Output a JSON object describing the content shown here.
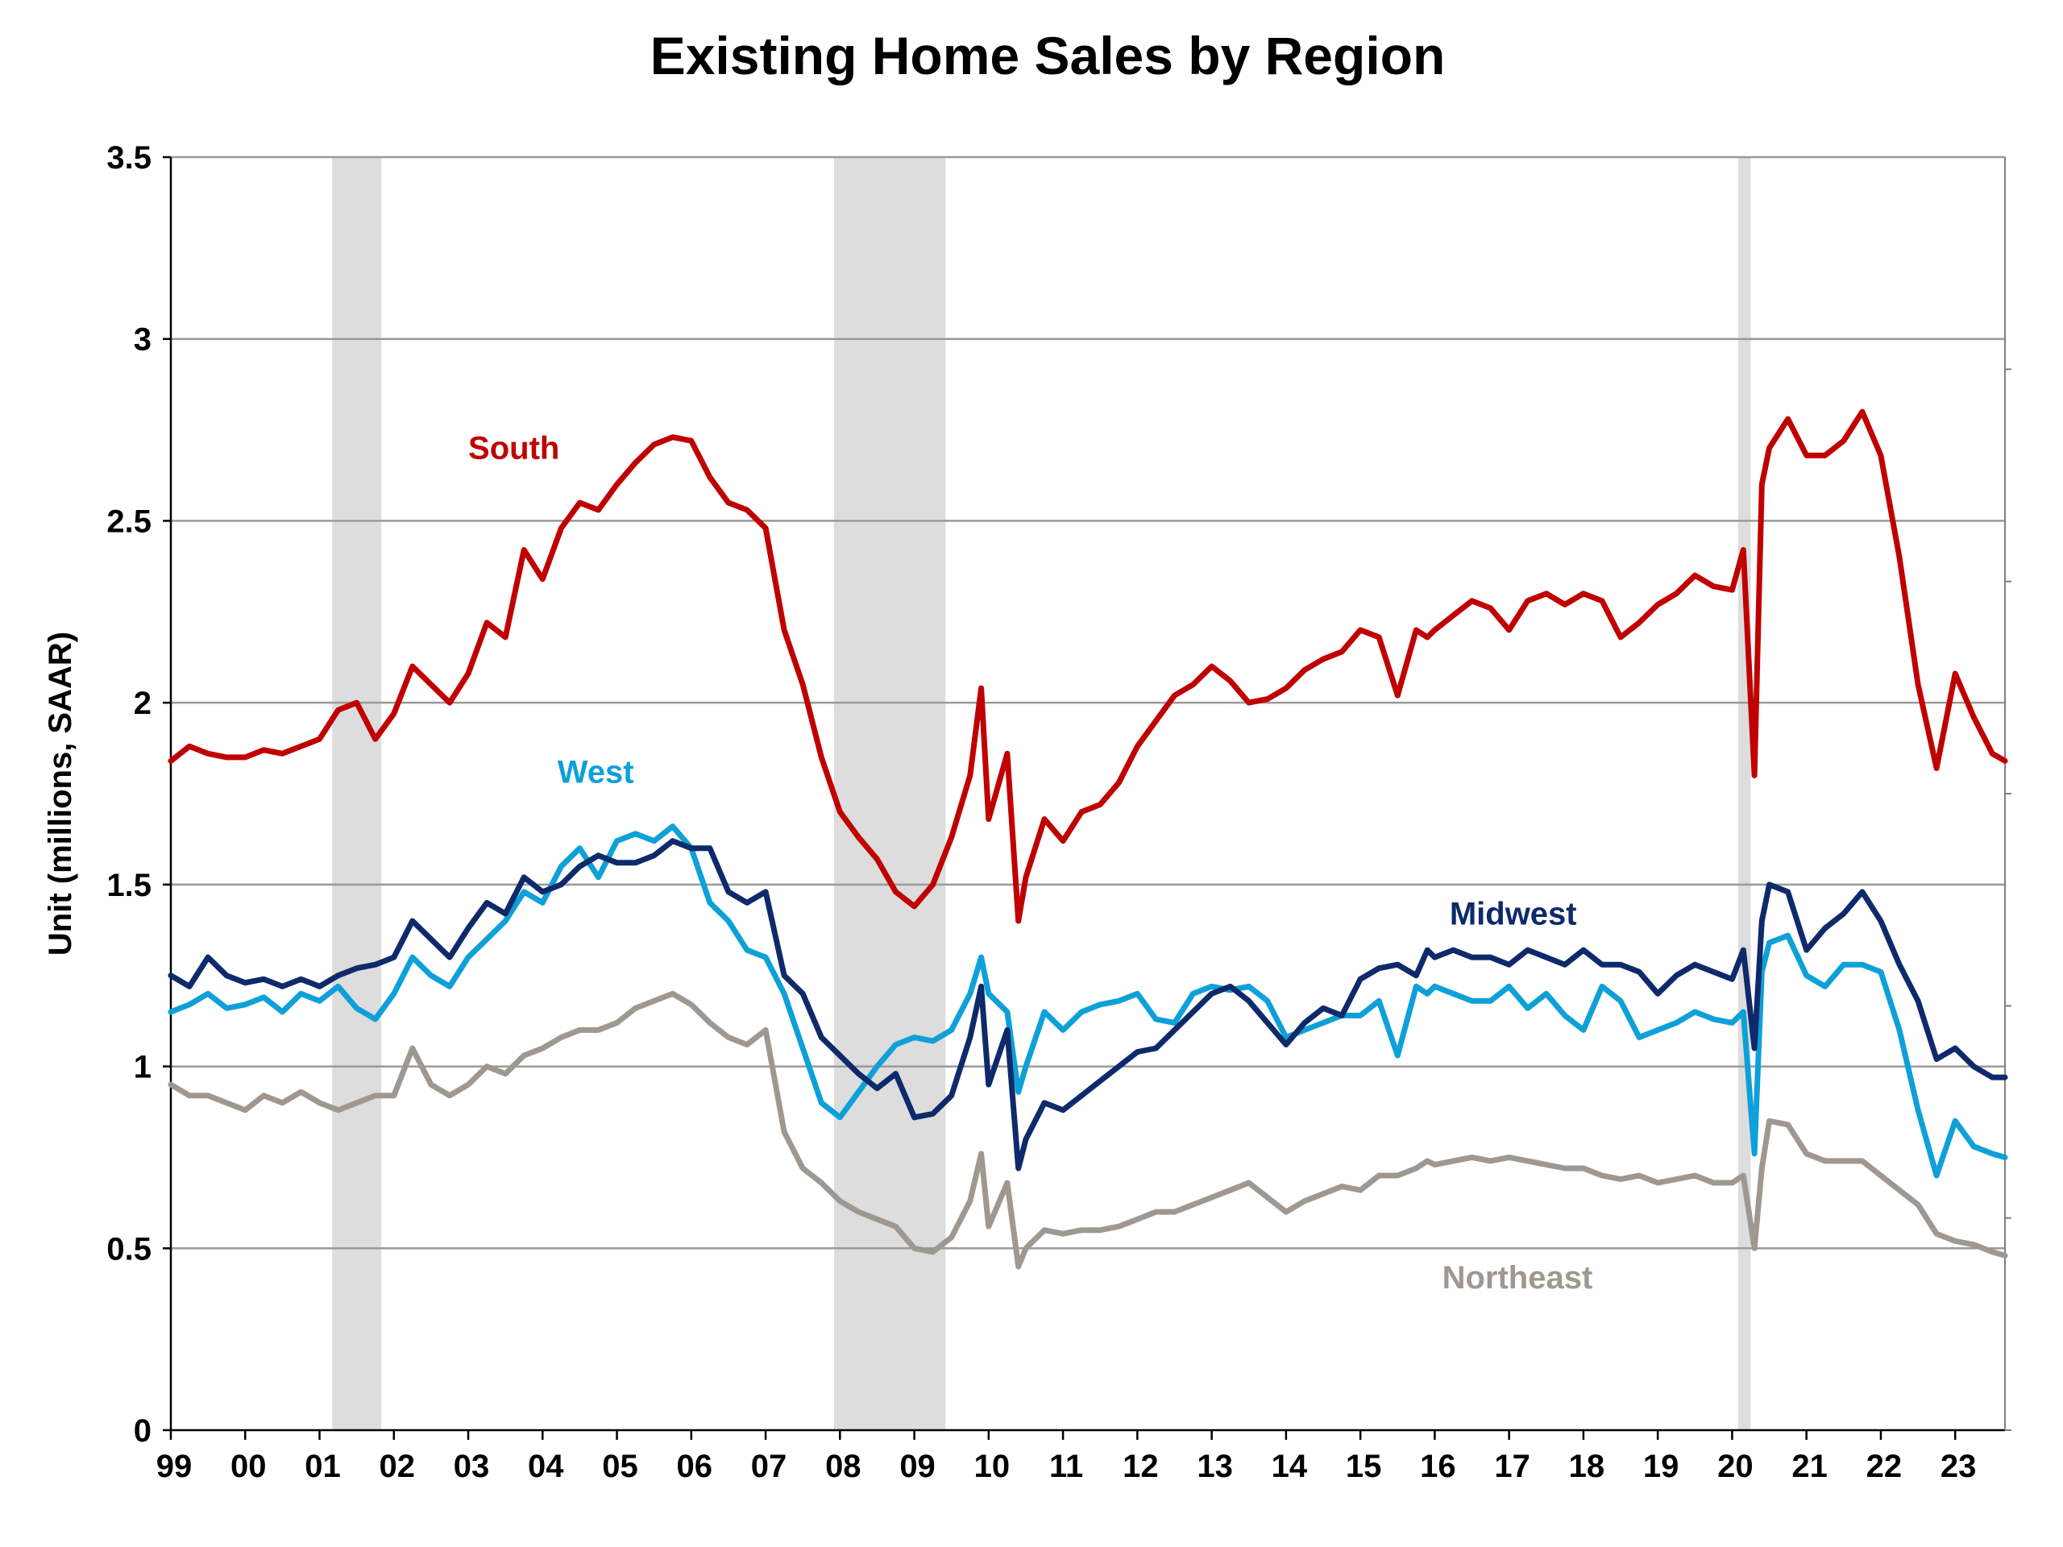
{
  "chart_data": {
    "type": "line",
    "title": "Existing Home Sales by Region",
    "ylabel": "Unit (millions, SAAR)",
    "xlabel": "",
    "ylim": [
      0,
      3.5
    ],
    "yticks": [
      "0",
      "0.5",
      "1",
      "1.5",
      "2",
      "2.5",
      "3",
      "3.5"
    ],
    "xlim": [
      1999.0,
      2023.67
    ],
    "xticks": [
      "99",
      "00",
      "01",
      "02",
      "03",
      "04",
      "05",
      "06",
      "07",
      "08",
      "09",
      "10",
      "11",
      "12",
      "13",
      "14",
      "15",
      "16",
      "17",
      "18",
      "19",
      "20",
      "21",
      "22",
      "23"
    ],
    "grid": true,
    "legend": "inline",
    "recession_shading": [
      [
        2001.17,
        2001.83
      ],
      [
        2007.92,
        2009.42
      ],
      [
        2020.08,
        2020.25
      ]
    ],
    "series": [
      {
        "name": "South",
        "color": "#c00000",
        "x": [
          1999.0,
          1999.25,
          1999.5,
          1999.75,
          2000.0,
          2000.25,
          2000.5,
          2000.75,
          2001.0,
          2001.25,
          2001.5,
          2001.75,
          2002.0,
          2002.25,
          2002.5,
          2002.75,
          2003.0,
          2003.25,
          2003.5,
          2003.75,
          2004.0,
          2004.25,
          2004.5,
          2004.75,
          2005.0,
          2005.25,
          2005.5,
          2005.75,
          2006.0,
          2006.25,
          2006.5,
          2006.75,
          2007.0,
          2007.25,
          2007.5,
          2007.75,
          2008.0,
          2008.25,
          2008.5,
          2008.75,
          2009.0,
          2009.25,
          2009.5,
          2009.75,
          2009.9,
          2010.0,
          2010.25,
          2010.4,
          2010.5,
          2010.75,
          2011.0,
          2011.25,
          2011.5,
          2011.75,
          2012.0,
          2012.25,
          2012.5,
          2012.75,
          2013.0,
          2013.25,
          2013.5,
          2013.75,
          2014.0,
          2014.25,
          2014.5,
          2014.75,
          2015.0,
          2015.25,
          2015.5,
          2015.75,
          2015.9,
          2016.0,
          2016.25,
          2016.5,
          2016.75,
          2017.0,
          2017.25,
          2017.5,
          2017.75,
          2018.0,
          2018.25,
          2018.5,
          2018.75,
          2019.0,
          2019.25,
          2019.5,
          2019.75,
          2020.0,
          2020.15,
          2020.3,
          2020.4,
          2020.5,
          2020.75,
          2021.0,
          2021.25,
          2021.5,
          2021.75,
          2022.0,
          2022.25,
          2022.5,
          2022.75,
          2023.0,
          2023.25,
          2023.5,
          2023.67
        ],
        "y": [
          1.84,
          1.88,
          1.86,
          1.85,
          1.85,
          1.87,
          1.86,
          1.88,
          1.9,
          1.98,
          2.0,
          1.9,
          1.97,
          2.1,
          2.05,
          2.0,
          2.08,
          2.22,
          2.18,
          2.42,
          2.34,
          2.48,
          2.55,
          2.53,
          2.6,
          2.66,
          2.71,
          2.73,
          2.72,
          2.62,
          2.55,
          2.53,
          2.48,
          2.2,
          2.05,
          1.85,
          1.7,
          1.63,
          1.57,
          1.48,
          1.44,
          1.5,
          1.63,
          1.8,
          2.04,
          1.68,
          1.86,
          1.4,
          1.52,
          1.68,
          1.62,
          1.7,
          1.72,
          1.78,
          1.88,
          1.95,
          2.02,
          2.05,
          2.1,
          2.06,
          2.0,
          2.01,
          2.04,
          2.09,
          2.12,
          2.14,
          2.2,
          2.18,
          2.02,
          2.2,
          2.18,
          2.2,
          2.24,
          2.28,
          2.26,
          2.2,
          2.28,
          2.3,
          2.27,
          2.3,
          2.28,
          2.18,
          2.22,
          2.27,
          2.3,
          2.35,
          2.32,
          2.31,
          2.42,
          1.8,
          2.6,
          2.7,
          2.78,
          2.68,
          2.68,
          2.72,
          2.8,
          2.68,
          2.4,
          2.05,
          1.82,
          2.08,
          1.96,
          1.86,
          1.84
        ]
      },
      {
        "name": "West",
        "color": "#0ea0d8",
        "x": [
          1999.0,
          1999.25,
          1999.5,
          1999.75,
          2000.0,
          2000.25,
          2000.5,
          2000.75,
          2001.0,
          2001.25,
          2001.5,
          2001.75,
          2002.0,
          2002.25,
          2002.5,
          2002.75,
          2003.0,
          2003.25,
          2003.5,
          2003.75,
          2004.0,
          2004.25,
          2004.5,
          2004.75,
          2005.0,
          2005.25,
          2005.5,
          2005.75,
          2006.0,
          2006.25,
          2006.5,
          2006.75,
          2007.0,
          2007.25,
          2007.5,
          2007.75,
          2008.0,
          2008.25,
          2008.5,
          2008.75,
          2009.0,
          2009.25,
          2009.5,
          2009.75,
          2009.9,
          2010.0,
          2010.25,
          2010.4,
          2010.5,
          2010.75,
          2011.0,
          2011.25,
          2011.5,
          2011.75,
          2012.0,
          2012.25,
          2012.5,
          2012.75,
          2013.0,
          2013.25,
          2013.5,
          2013.75,
          2014.0,
          2014.25,
          2014.5,
          2014.75,
          2015.0,
          2015.25,
          2015.5,
          2015.75,
          2015.9,
          2016.0,
          2016.25,
          2016.5,
          2016.75,
          2017.0,
          2017.25,
          2017.5,
          2017.75,
          2018.0,
          2018.25,
          2018.5,
          2018.75,
          2019.0,
          2019.25,
          2019.5,
          2019.75,
          2020.0,
          2020.15,
          2020.3,
          2020.4,
          2020.5,
          2020.75,
          2021.0,
          2021.25,
          2021.5,
          2021.75,
          2022.0,
          2022.25,
          2022.5,
          2022.75,
          2023.0,
          2023.25,
          2023.5,
          2023.67
        ],
        "y": [
          1.15,
          1.17,
          1.2,
          1.16,
          1.17,
          1.19,
          1.15,
          1.2,
          1.18,
          1.22,
          1.16,
          1.13,
          1.2,
          1.3,
          1.25,
          1.22,
          1.3,
          1.35,
          1.4,
          1.48,
          1.45,
          1.55,
          1.6,
          1.52,
          1.62,
          1.64,
          1.62,
          1.66,
          1.6,
          1.45,
          1.4,
          1.32,
          1.3,
          1.2,
          1.05,
          0.9,
          0.86,
          0.93,
          1.0,
          1.06,
          1.08,
          1.07,
          1.1,
          1.2,
          1.3,
          1.2,
          1.15,
          0.93,
          1.0,
          1.15,
          1.1,
          1.15,
          1.17,
          1.18,
          1.2,
          1.13,
          1.12,
          1.2,
          1.22,
          1.21,
          1.22,
          1.18,
          1.08,
          1.1,
          1.12,
          1.14,
          1.14,
          1.18,
          1.03,
          1.22,
          1.2,
          1.22,
          1.2,
          1.18,
          1.18,
          1.22,
          1.16,
          1.2,
          1.14,
          1.1,
          1.22,
          1.18,
          1.08,
          1.1,
          1.12,
          1.15,
          1.13,
          1.12,
          1.15,
          0.76,
          1.26,
          1.34,
          1.36,
          1.25,
          1.22,
          1.28,
          1.28,
          1.26,
          1.1,
          0.88,
          0.7,
          0.85,
          0.78,
          0.76,
          0.75
        ]
      },
      {
        "name": "Midwest",
        "color": "#0e2a6b",
        "x": [
          1999.0,
          1999.25,
          1999.5,
          1999.75,
          2000.0,
          2000.25,
          2000.5,
          2000.75,
          2001.0,
          2001.25,
          2001.5,
          2001.75,
          2002.0,
          2002.25,
          2002.5,
          2002.75,
          2003.0,
          2003.25,
          2003.5,
          2003.75,
          2004.0,
          2004.25,
          2004.5,
          2004.75,
          2005.0,
          2005.25,
          2005.5,
          2005.75,
          2006.0,
          2006.25,
          2006.5,
          2006.75,
          2007.0,
          2007.25,
          2007.5,
          2007.75,
          2008.0,
          2008.25,
          2008.5,
          2008.75,
          2009.0,
          2009.25,
          2009.5,
          2009.75,
          2009.9,
          2010.0,
          2010.25,
          2010.4,
          2010.5,
          2010.75,
          2011.0,
          2011.25,
          2011.5,
          2011.75,
          2012.0,
          2012.25,
          2012.5,
          2012.75,
          2013.0,
          2013.25,
          2013.5,
          2013.75,
          2014.0,
          2014.25,
          2014.5,
          2014.75,
          2015.0,
          2015.25,
          2015.5,
          2015.75,
          2015.9,
          2016.0,
          2016.25,
          2016.5,
          2016.75,
          2017.0,
          2017.25,
          2017.5,
          2017.75,
          2018.0,
          2018.25,
          2018.5,
          2018.75,
          2019.0,
          2019.25,
          2019.5,
          2019.75,
          2020.0,
          2020.15,
          2020.3,
          2020.4,
          2020.5,
          2020.75,
          2021.0,
          2021.25,
          2021.5,
          2021.75,
          2022.0,
          2022.25,
          2022.5,
          2022.75,
          2023.0,
          2023.25,
          2023.5,
          2023.67
        ],
        "y": [
          1.25,
          1.22,
          1.3,
          1.25,
          1.23,
          1.24,
          1.22,
          1.24,
          1.22,
          1.25,
          1.27,
          1.28,
          1.3,
          1.4,
          1.35,
          1.3,
          1.38,
          1.45,
          1.42,
          1.52,
          1.48,
          1.5,
          1.55,
          1.58,
          1.56,
          1.56,
          1.58,
          1.62,
          1.6,
          1.6,
          1.48,
          1.45,
          1.48,
          1.25,
          1.2,
          1.08,
          1.03,
          0.98,
          0.94,
          0.98,
          0.86,
          0.87,
          0.92,
          1.08,
          1.22,
          0.95,
          1.1,
          0.72,
          0.8,
          0.9,
          0.88,
          0.92,
          0.96,
          1.0,
          1.04,
          1.05,
          1.1,
          1.15,
          1.2,
          1.22,
          1.18,
          1.12,
          1.06,
          1.12,
          1.16,
          1.14,
          1.24,
          1.27,
          1.28,
          1.25,
          1.32,
          1.3,
          1.32,
          1.3,
          1.3,
          1.28,
          1.32,
          1.3,
          1.28,
          1.32,
          1.28,
          1.28,
          1.26,
          1.2,
          1.25,
          1.28,
          1.26,
          1.24,
          1.32,
          1.05,
          1.4,
          1.5,
          1.48,
          1.32,
          1.38,
          1.42,
          1.48,
          1.4,
          1.28,
          1.18,
          1.02,
          1.05,
          1.0,
          0.97,
          0.97
        ]
      },
      {
        "name": "Northeast",
        "color": "#9f9890",
        "x": [
          1999.0,
          1999.25,
          1999.5,
          1999.75,
          2000.0,
          2000.25,
          2000.5,
          2000.75,
          2001.0,
          2001.25,
          2001.5,
          2001.75,
          2002.0,
          2002.25,
          2002.5,
          2002.75,
          2003.0,
          2003.25,
          2003.5,
          2003.75,
          2004.0,
          2004.25,
          2004.5,
          2004.75,
          2005.0,
          2005.25,
          2005.5,
          2005.75,
          2006.0,
          2006.25,
          2006.5,
          2006.75,
          2007.0,
          2007.25,
          2007.5,
          2007.75,
          2008.0,
          2008.25,
          2008.5,
          2008.75,
          2009.0,
          2009.25,
          2009.5,
          2009.75,
          2009.9,
          2010.0,
          2010.25,
          2010.4,
          2010.5,
          2010.75,
          2011.0,
          2011.25,
          2011.5,
          2011.75,
          2012.0,
          2012.25,
          2012.5,
          2012.75,
          2013.0,
          2013.25,
          2013.5,
          2013.75,
          2014.0,
          2014.25,
          2014.5,
          2014.75,
          2015.0,
          2015.25,
          2015.5,
          2015.75,
          2015.9,
          2016.0,
          2016.25,
          2016.5,
          2016.75,
          2017.0,
          2017.25,
          2017.5,
          2017.75,
          2018.0,
          2018.25,
          2018.5,
          2018.75,
          2019.0,
          2019.25,
          2019.5,
          2019.75,
          2020.0,
          2020.15,
          2020.3,
          2020.4,
          2020.5,
          2020.75,
          2021.0,
          2021.25,
          2021.5,
          2021.75,
          2022.0,
          2022.25,
          2022.5,
          2022.75,
          2023.0,
          2023.25,
          2023.5,
          2023.67
        ],
        "y": [
          0.95,
          0.92,
          0.92,
          0.9,
          0.88,
          0.92,
          0.9,
          0.93,
          0.9,
          0.88,
          0.9,
          0.92,
          0.92,
          1.05,
          0.95,
          0.92,
          0.95,
          1.0,
          0.98,
          1.03,
          1.05,
          1.08,
          1.1,
          1.1,
          1.12,
          1.16,
          1.18,
          1.2,
          1.17,
          1.12,
          1.08,
          1.06,
          1.1,
          0.82,
          0.72,
          0.68,
          0.63,
          0.6,
          0.58,
          0.56,
          0.5,
          0.49,
          0.53,
          0.63,
          0.76,
          0.56,
          0.68,
          0.45,
          0.5,
          0.55,
          0.54,
          0.55,
          0.55,
          0.56,
          0.58,
          0.6,
          0.6,
          0.62,
          0.64,
          0.66,
          0.68,
          0.64,
          0.6,
          0.63,
          0.65,
          0.67,
          0.66,
          0.7,
          0.7,
          0.72,
          0.74,
          0.73,
          0.74,
          0.75,
          0.74,
          0.75,
          0.74,
          0.73,
          0.72,
          0.72,
          0.7,
          0.69,
          0.7,
          0.68,
          0.69,
          0.7,
          0.68,
          0.68,
          0.7,
          0.5,
          0.72,
          0.85,
          0.84,
          0.76,
          0.74,
          0.74,
          0.74,
          0.7,
          0.66,
          0.62,
          0.54,
          0.52,
          0.51,
          0.49,
          0.48
        ]
      }
    ],
    "annotations": [
      {
        "text": "South",
        "x": 2003.0,
        "y": 2.67
      },
      {
        "text": "West",
        "x": 2004.2,
        "y": 1.78
      },
      {
        "text": "Midwest",
        "x": 2016.2,
        "y": 1.39
      },
      {
        "text": "Northeast",
        "x": 2016.1,
        "y": 0.39
      }
    ]
  }
}
